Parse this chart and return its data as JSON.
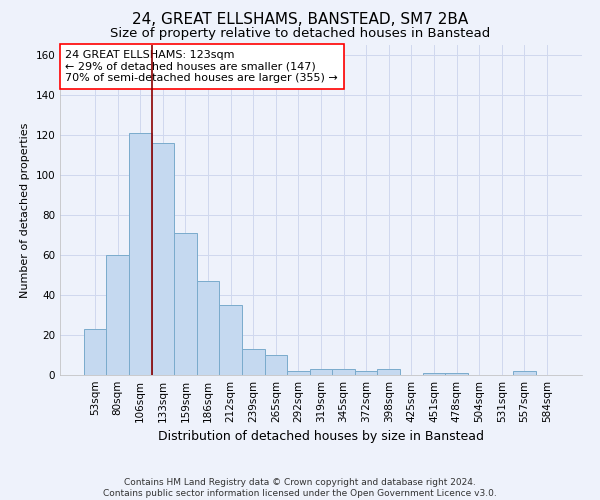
{
  "title": "24, GREAT ELLSHAMS, BANSTEAD, SM7 2BA",
  "subtitle": "Size of property relative to detached houses in Banstead",
  "xlabel": "Distribution of detached houses by size in Banstead",
  "ylabel": "Number of detached properties",
  "categories": [
    "53sqm",
    "80sqm",
    "106sqm",
    "133sqm",
    "159sqm",
    "186sqm",
    "212sqm",
    "239sqm",
    "265sqm",
    "292sqm",
    "319sqm",
    "345sqm",
    "372sqm",
    "398sqm",
    "425sqm",
    "451sqm",
    "478sqm",
    "504sqm",
    "531sqm",
    "557sqm",
    "584sqm"
  ],
  "values": [
    23,
    60,
    121,
    116,
    71,
    47,
    35,
    13,
    10,
    2,
    3,
    3,
    2,
    3,
    0,
    1,
    1,
    0,
    0,
    2,
    0
  ],
  "bar_color": "#c5d9f0",
  "bar_edge_color": "#7aabcc",
  "vline_x_index": 3,
  "vline_color": "#8b0000",
  "annotation_text": "24 GREAT ELLSHAMS: 123sqm\n← 29% of detached houses are smaller (147)\n70% of semi-detached houses are larger (355) →",
  "annotation_box_color": "white",
  "annotation_box_edge_color": "red",
  "ylim": [
    0,
    165
  ],
  "yticks": [
    0,
    20,
    40,
    60,
    80,
    100,
    120,
    140,
    160
  ],
  "background_color": "#eef2fb",
  "grid_color": "#d0d8ee",
  "footnote": "Contains HM Land Registry data © Crown copyright and database right 2024.\nContains public sector information licensed under the Open Government Licence v3.0.",
  "title_fontsize": 11,
  "subtitle_fontsize": 9.5,
  "xlabel_fontsize": 9,
  "ylabel_fontsize": 8,
  "tick_fontsize": 7.5,
  "annotation_fontsize": 8,
  "footnote_fontsize": 6.5
}
